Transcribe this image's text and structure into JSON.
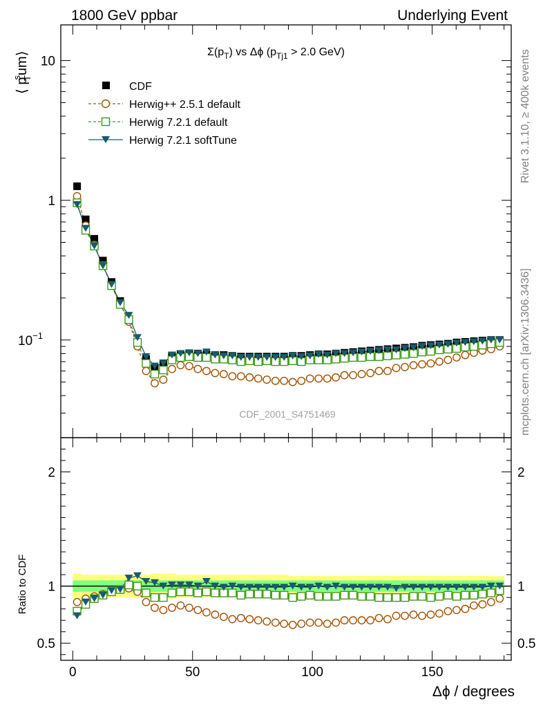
{
  "header": {
    "left": "1800 GeV ppbar",
    "right": "Underlying Event"
  },
  "side": {
    "rivet": "Rivet 3.1.10, ≥ 400k events",
    "mcplots": "mcplots.cern.ch [arXiv:1306.3436]"
  },
  "watermark": "CDF_2001_S4751469",
  "colors": {
    "cdf": "#000000",
    "herwigpp": "#a05000",
    "herwig721": "#3c9a18",
    "softtune": "#1a5a6a",
    "band_yellow": "#ffff80",
    "band_green": "#80ff80"
  },
  "chart_data": [
    {
      "type": "scatter",
      "title_parts": [
        "Σ(p",
        "T",
        ") vs Δϕ (p",
        "Tj1",
        " > 2.0 GeV)"
      ],
      "ylabel_parts": [
        "⟨ p",
        "s",
        "T",
        "um⟩"
      ],
      "yscale": "log",
      "ylim": [
        0.02,
        18
      ],
      "xlim": [
        -5,
        183
      ],
      "yticks": [
        {
          "value": 10,
          "label": "10"
        },
        {
          "value": 1,
          "label": "1"
        },
        {
          "value": 0.1,
          "label": "10",
          "exp": "−1"
        }
      ],
      "legend": {
        "placement": "top-left",
        "entries": [
          {
            "key": "cdf",
            "label": "CDF"
          },
          {
            "key": "herwigpp",
            "label": "Herwig++ 2.5.1 default"
          },
          {
            "key": "herwig721",
            "label": "Herwig 7.2.1 default"
          },
          {
            "key": "softtune",
            "label": "Herwig 7.2.1 softTune"
          }
        ]
      },
      "x": [
        1.8,
        5.4,
        9,
        12.6,
        16.2,
        19.8,
        23.4,
        27,
        30.6,
        34.2,
        37.8,
        41.4,
        45,
        48.6,
        52.2,
        55.8,
        59.4,
        63,
        66.6,
        70.2,
        73.8,
        77.4,
        81,
        84.6,
        88.2,
        91.8,
        95.4,
        99,
        102.6,
        106.2,
        109.8,
        113.4,
        117,
        120.6,
        124.2,
        127.8,
        131.4,
        135,
        138.6,
        142.2,
        145.8,
        149.4,
        153,
        156.6,
        160.2,
        163.8,
        167.4,
        171,
        174.6,
        178.2
      ],
      "series": [
        {
          "key": "cdf",
          "name": "CDF",
          "values": [
            1.26,
            0.73,
            0.53,
            0.37,
            0.26,
            0.19,
            0.14,
            0.095,
            0.073,
            0.063,
            0.068,
            0.077,
            0.079,
            0.08,
            0.08,
            0.079,
            0.078,
            0.078,
            0.077,
            0.076,
            0.076,
            0.076,
            0.076,
            0.076,
            0.076,
            0.077,
            0.077,
            0.078,
            0.079,
            0.079,
            0.08,
            0.081,
            0.082,
            0.083,
            0.084,
            0.085,
            0.086,
            0.087,
            0.088,
            0.089,
            0.091,
            0.092,
            0.093,
            0.094,
            0.096,
            0.097,
            0.098,
            0.099,
            0.1,
            0.1
          ]
        },
        {
          "key": "herwigpp",
          "name": "Herwig++ 2.5.1 default",
          "values": [
            1.07,
            0.66,
            0.48,
            0.34,
            0.245,
            0.18,
            0.135,
            0.09,
            0.06,
            0.049,
            0.052,
            0.062,
            0.066,
            0.065,
            0.062,
            0.06,
            0.058,
            0.057,
            0.055,
            0.055,
            0.054,
            0.053,
            0.052,
            0.051,
            0.051,
            0.05,
            0.051,
            0.053,
            0.053,
            0.053,
            0.054,
            0.056,
            0.056,
            0.057,
            0.058,
            0.06,
            0.06,
            0.063,
            0.064,
            0.066,
            0.067,
            0.068,
            0.07,
            0.072,
            0.075,
            0.078,
            0.081,
            0.084,
            0.086,
            0.09
          ]
        },
        {
          "key": "herwig721",
          "name": "Herwig 7.2.1 default",
          "values": [
            0.96,
            0.61,
            0.47,
            0.34,
            0.245,
            0.18,
            0.14,
            0.096,
            0.068,
            0.057,
            0.061,
            0.072,
            0.075,
            0.076,
            0.075,
            0.075,
            0.073,
            0.073,
            0.072,
            0.07,
            0.071,
            0.07,
            0.071,
            0.07,
            0.07,
            0.071,
            0.07,
            0.072,
            0.072,
            0.072,
            0.073,
            0.074,
            0.075,
            0.075,
            0.076,
            0.076,
            0.077,
            0.078,
            0.079,
            0.08,
            0.082,
            0.083,
            0.085,
            0.086,
            0.087,
            0.089,
            0.09,
            0.092,
            0.094,
            0.096
          ]
        },
        {
          "key": "softtune",
          "name": "Herwig 7.2.1 softTune",
          "values": [
            0.93,
            0.63,
            0.47,
            0.34,
            0.25,
            0.185,
            0.15,
            0.104,
            0.076,
            0.065,
            0.068,
            0.078,
            0.08,
            0.081,
            0.08,
            0.082,
            0.078,
            0.077,
            0.077,
            0.075,
            0.075,
            0.075,
            0.075,
            0.075,
            0.075,
            0.077,
            0.076,
            0.077,
            0.079,
            0.078,
            0.08,
            0.08,
            0.081,
            0.082,
            0.083,
            0.084,
            0.085,
            0.085,
            0.087,
            0.088,
            0.09,
            0.091,
            0.092,
            0.093,
            0.095,
            0.096,
            0.097,
            0.098,
            0.1,
            0.1
          ]
        }
      ]
    },
    {
      "type": "scatter",
      "ylabel": "Ratio to CDF",
      "ylim": [
        0.35,
        2.3
      ],
      "xlim": [
        -5,
        183
      ],
      "yticks": [
        {
          "value": 2,
          "label": "2"
        },
        {
          "value": 1,
          "label": "1"
        },
        {
          "value": 0.5,
          "label": "0.5"
        }
      ],
      "xticks": [
        {
          "value": 0,
          "label": "0"
        },
        {
          "value": 50,
          "label": "50"
        },
        {
          "value": 100,
          "label": "100"
        },
        {
          "value": 150,
          "label": "150"
        }
      ],
      "xlabel": "Δϕ / degrees",
      "band_yellow_halfwidth": [
        0.11,
        0.1,
        0.1,
        0.1,
        0.1,
        0.1,
        0.1,
        0.1,
        0.1,
        0.11,
        0.11,
        0.11,
        0.1,
        0.1,
        0.1,
        0.1,
        0.1,
        0.1,
        0.1,
        0.1,
        0.1,
        0.1,
        0.1,
        0.1,
        0.1,
        0.09,
        0.09,
        0.09,
        0.09,
        0.09,
        0.09,
        0.09,
        0.09,
        0.09,
        0.09,
        0.09,
        0.09,
        0.09,
        0.09,
        0.09,
        0.09,
        0.09,
        0.09,
        0.09,
        0.09,
        0.09,
        0.09,
        0.09,
        0.09,
        0.09
      ],
      "band_green_halfwidth": [
        0.05,
        0.05,
        0.05,
        0.05,
        0.05,
        0.05,
        0.05,
        0.05,
        0.05,
        0.05,
        0.05,
        0.05,
        0.05,
        0.05,
        0.05,
        0.05,
        0.05,
        0.05,
        0.05,
        0.05,
        0.05,
        0.05,
        0.05,
        0.05,
        0.05,
        0.05,
        0.05,
        0.05,
        0.05,
        0.05,
        0.05,
        0.05,
        0.05,
        0.05,
        0.05,
        0.05,
        0.05,
        0.05,
        0.05,
        0.05,
        0.05,
        0.05,
        0.05,
        0.05,
        0.05,
        0.05,
        0.05,
        0.05,
        0.05,
        0.05
      ],
      "series": [
        {
          "key": "herwigpp",
          "name": "Herwig++ 2.5.1 default",
          "values": [
            0.86,
            0.89,
            0.91,
            0.93,
            0.95,
            0.97,
            0.98,
            0.95,
            0.86,
            0.81,
            0.79,
            0.81,
            0.83,
            0.81,
            0.79,
            0.77,
            0.75,
            0.73,
            0.71,
            0.72,
            0.71,
            0.7,
            0.69,
            0.68,
            0.67,
            0.66,
            0.67,
            0.68,
            0.68,
            0.67,
            0.68,
            0.7,
            0.7,
            0.7,
            0.7,
            0.72,
            0.71,
            0.74,
            0.74,
            0.75,
            0.74,
            0.75,
            0.76,
            0.78,
            0.79,
            0.8,
            0.83,
            0.84,
            0.86,
            0.89
          ]
        },
        {
          "key": "herwig721",
          "name": "Herwig 7.2.1 default",
          "values": [
            0.78,
            0.84,
            0.89,
            0.92,
            0.95,
            0.97,
            1.01,
            1.0,
            0.94,
            0.9,
            0.9,
            0.94,
            0.95,
            0.95,
            0.94,
            0.95,
            0.94,
            0.94,
            0.94,
            0.92,
            0.93,
            0.93,
            0.93,
            0.92,
            0.92,
            0.9,
            0.91,
            0.92,
            0.91,
            0.91,
            0.91,
            0.92,
            0.92,
            0.91,
            0.91,
            0.9,
            0.9,
            0.9,
            0.9,
            0.91,
            0.91,
            0.9,
            0.91,
            0.92,
            0.91,
            0.92,
            0.92,
            0.93,
            0.94,
            0.96
          ]
        },
        {
          "key": "softtune",
          "name": "Herwig 7.2.1 softTune",
          "values": [
            0.74,
            0.86,
            0.89,
            0.92,
            0.96,
            0.97,
            1.07,
            1.09,
            1.04,
            1.03,
            1.0,
            1.01,
            1.01,
            1.01,
            1.0,
            1.04,
            1.0,
            0.99,
            1.0,
            0.99,
            0.99,
            0.99,
            0.99,
            0.99,
            0.99,
            1.0,
            0.99,
            0.99,
            1.0,
            0.99,
            1.0,
            0.99,
            0.99,
            0.99,
            0.99,
            0.99,
            0.99,
            0.98,
            0.99,
            0.99,
            0.99,
            0.99,
            0.99,
            0.99,
            0.99,
            0.99,
            0.99,
            0.99,
            1.0,
            1.0
          ]
        }
      ]
    }
  ]
}
